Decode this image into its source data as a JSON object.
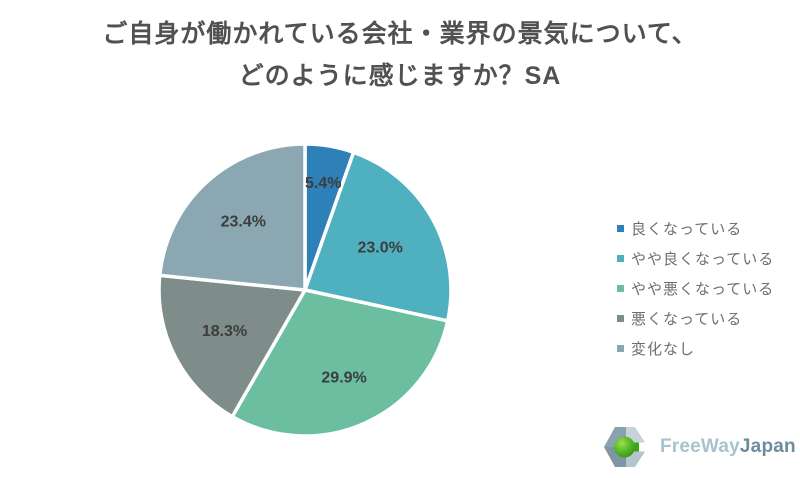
{
  "title": {
    "line1": "ご自身が働かれている会社・業界の景気について、",
    "line2": "どのように感じますか？SA"
  },
  "chart_data": {
    "type": "pie",
    "title": "ご自身が働かれている会社・業界の景気について、どのように感じますか？SA",
    "categories": [
      "良くなっている",
      "やや良くなっている",
      "やや悪くなっている",
      "悪くなっている",
      "変化なし"
    ],
    "values": [
      5.4,
      23.0,
      29.9,
      18.3,
      23.4
    ],
    "labels": [
      "5.4%",
      "23.0%",
      "29.9%",
      "18.3%",
      "23.4%"
    ],
    "colors": [
      "#2d81b8",
      "#4fb1c0",
      "#6cbea0",
      "#7e8c8a",
      "#8ba8b2"
    ],
    "start_angle_deg": 0,
    "direction": "clockwise",
    "legend_position": "right",
    "label_radius": [
      0.74,
      0.59,
      0.66,
      0.62,
      0.63
    ],
    "slice_border_color": "#ffffff",
    "slice_border_width": 3.5,
    "label_color": "#3d3d3d"
  },
  "logo": {
    "brand_light": "FreeWay",
    "brand_dark": "Japan"
  }
}
